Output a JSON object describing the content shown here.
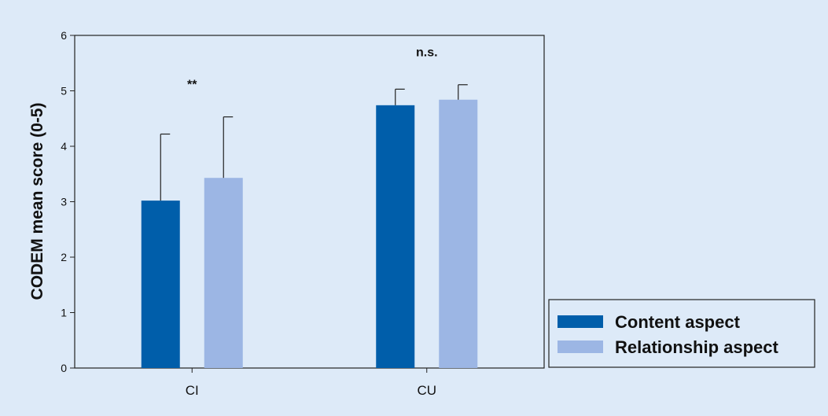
{
  "chart_data": {
    "type": "bar",
    "title": "",
    "xlabel": "",
    "ylabel": "CODEM mean score (0-5)",
    "ylim": [
      0,
      6
    ],
    "yticks": [
      0,
      1,
      2,
      3,
      4,
      5,
      6
    ],
    "categories": [
      "CI",
      "CU"
    ],
    "series": [
      {
        "name": "Content aspect",
        "color": "#005eaa",
        "values": [
          3.02,
          4.74
        ],
        "error": [
          1.2,
          0.29
        ]
      },
      {
        "name": "Relationship aspect",
        "color": "#9cb6e4",
        "values": [
          3.43,
          4.84
        ],
        "error": [
          1.1,
          0.27
        ]
      }
    ],
    "annotations": [
      "**",
      "n.s."
    ],
    "legend": "bottom-right",
    "grid": false
  }
}
